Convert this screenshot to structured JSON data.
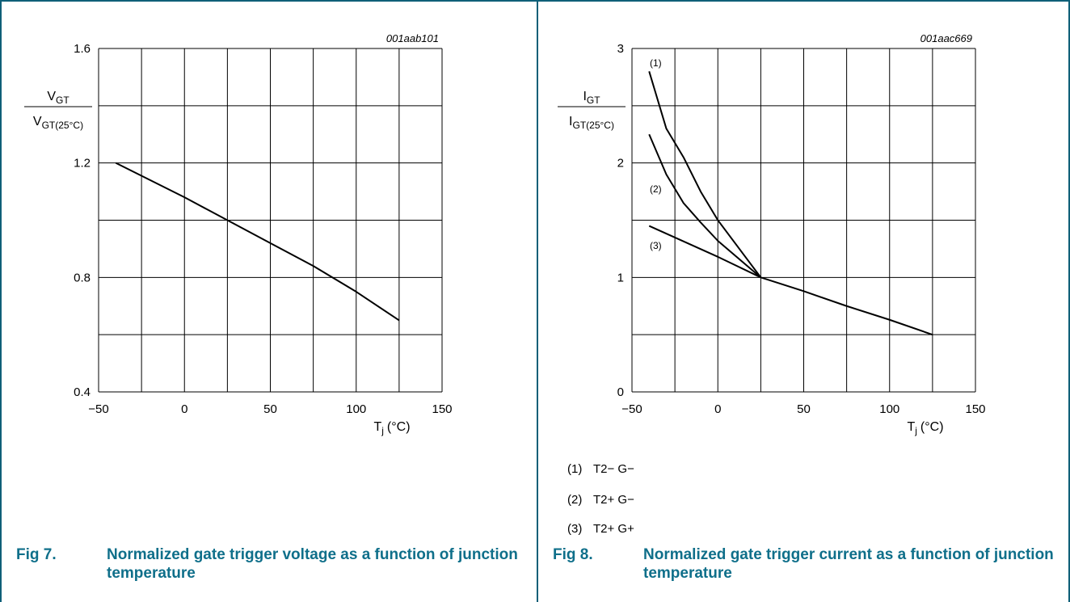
{
  "figures": [
    {
      "chart_data": {
        "type": "line",
        "code": "001aab101",
        "ylabel_numerator": "V",
        "ylabel_numerator_sub": "GT",
        "ylabel_denominator": "V",
        "ylabel_denominator_sub": "GT(25°C)",
        "xlabel_main": "T",
        "xlabel_sub": "j",
        "xlabel_unit": "(°C)",
        "xlim": [
          -50,
          150
        ],
        "ylim": [
          0.4,
          1.6
        ],
        "x_ticks": [
          "−50",
          "0",
          "50",
          "100",
          "150"
        ],
        "y_ticks": [
          "0.4",
          "0.8",
          "1.2",
          "1.6"
        ],
        "series": [
          {
            "x": [
              -40,
              0,
              25,
              50,
              75,
              100,
              125
            ],
            "y": [
              1.2,
              1.08,
              1.0,
              0.92,
              0.84,
              0.75,
              0.65
            ]
          }
        ]
      },
      "caption_num": "Fig 7.",
      "caption_text": "Normalized gate trigger voltage as a function of junction temperature"
    },
    {
      "chart_data": {
        "type": "line",
        "code": "001aac669",
        "ylabel_numerator": "I",
        "ylabel_numerator_sub": "GT",
        "ylabel_denominator": "I",
        "ylabel_denominator_sub": "GT(25°C)",
        "xlabel_main": "T",
        "xlabel_sub": "j",
        "xlabel_unit": "(°C)",
        "xlim": [
          -50,
          150
        ],
        "ylim": [
          0,
          3
        ],
        "x_ticks": [
          "−50",
          "0",
          "50",
          "100",
          "150"
        ],
        "y_ticks": [
          "0",
          "1",
          "2",
          "3"
        ],
        "series": [
          {
            "label": "(1)",
            "x": [
              -40,
              -30,
              -20,
              -10,
              0,
              25
            ],
            "y": [
              2.8,
              2.3,
              2.05,
              1.75,
              1.5,
              1.0
            ]
          },
          {
            "label": "(2)",
            "x": [
              -40,
              -30,
              -20,
              -10,
              0,
              25
            ],
            "y": [
              2.25,
              1.9,
              1.65,
              1.48,
              1.32,
              1.0
            ]
          },
          {
            "label": "(3)",
            "x": [
              -40,
              0,
              25,
              50,
              75,
              100,
              125
            ],
            "y": [
              1.45,
              1.18,
              1.0,
              0.88,
              0.75,
              0.63,
              0.5
            ]
          }
        ],
        "legend": [
          {
            "num": "(1)",
            "text": "T2− G−"
          },
          {
            "num": "(2)",
            "text": "T2+ G−"
          },
          {
            "num": "(3)",
            "text": "T2+ G+"
          }
        ]
      },
      "caption_num": "Fig 8.",
      "caption_text": "Normalized gate trigger current as a function of junction temperature"
    }
  ]
}
